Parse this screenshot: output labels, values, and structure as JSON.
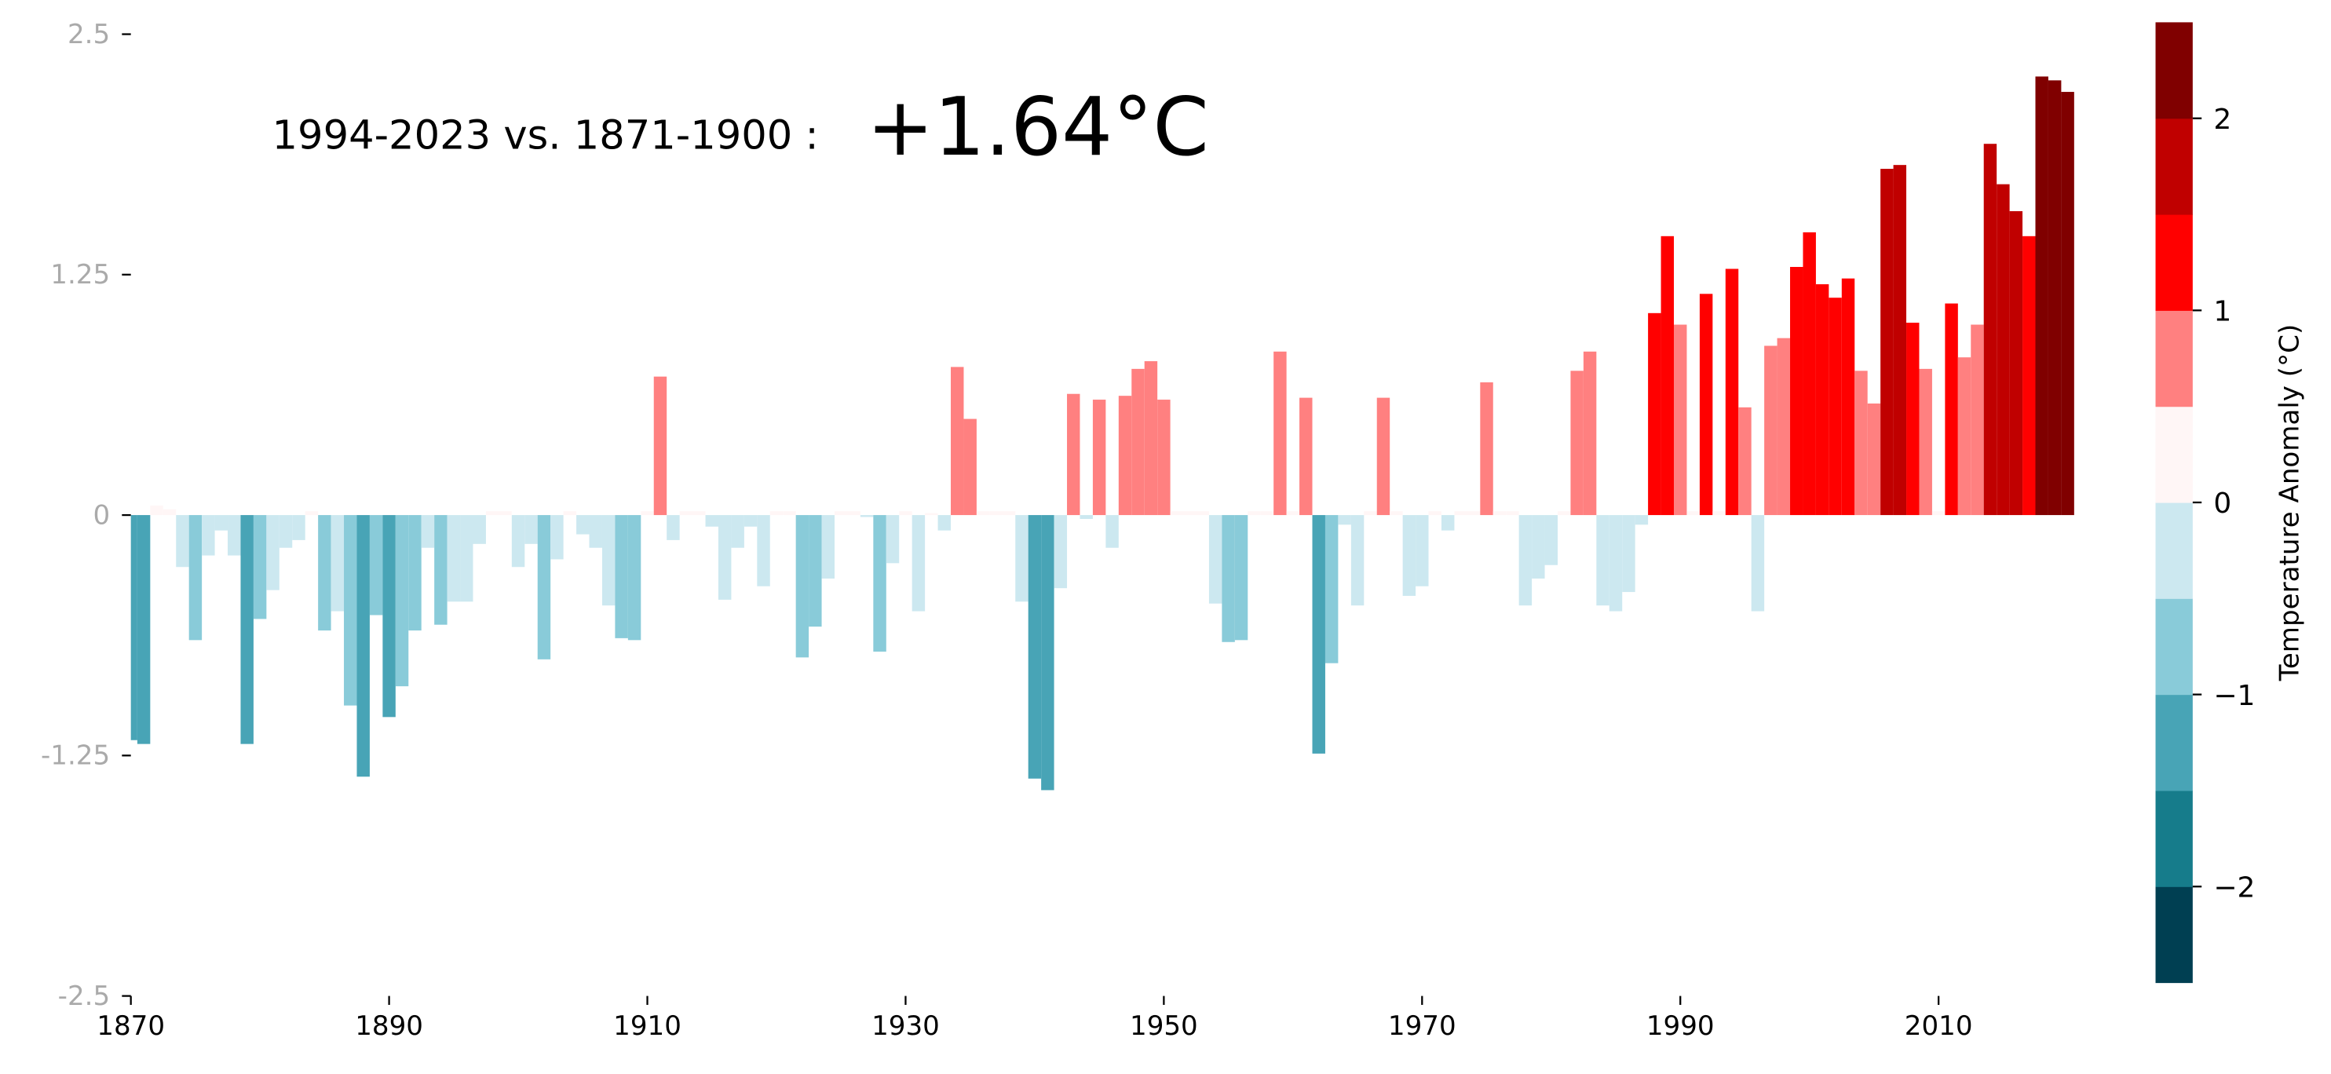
{
  "chart_data": {
    "type": "bar",
    "annotation": "1994-2023 vs. 1871-1900 :",
    "annotation_value": "+1.64°C",
    "x": [
      1870,
      1871,
      1872,
      1873,
      1874,
      1875,
      1876,
      1877,
      1878,
      1879,
      1880,
      1881,
      1882,
      1883,
      1884,
      1885,
      1886,
      1887,
      1888,
      1889,
      1890,
      1891,
      1892,
      1893,
      1894,
      1895,
      1896,
      1897,
      1898,
      1899,
      1900,
      1901,
      1902,
      1903,
      1904,
      1905,
      1906,
      1907,
      1908,
      1909,
      1910,
      1911,
      1912,
      1913,
      1914,
      1915,
      1916,
      1917,
      1918,
      1919,
      1920,
      1921,
      1922,
      1923,
      1924,
      1925,
      1926,
      1927,
      1928,
      1929,
      1930,
      1931,
      1932,
      1933,
      1934,
      1935,
      1936,
      1937,
      1938,
      1939,
      1940,
      1941,
      1942,
      1943,
      1944,
      1945,
      1946,
      1947,
      1948,
      1949,
      1950,
      1951,
      1952,
      1953,
      1954,
      1955,
      1956,
      1957,
      1958,
      1959,
      1960,
      1961,
      1962,
      1963,
      1964,
      1965,
      1966,
      1967,
      1968,
      1969,
      1970,
      1971,
      1972,
      1973,
      1974,
      1975,
      1976,
      1977,
      1978,
      1979,
      1980,
      1981,
      1982,
      1983,
      1984,
      1985,
      1986,
      1987,
      1988,
      1989,
      1990,
      1991,
      1992,
      1993,
      1994,
      1995,
      1996,
      1997,
      1998,
      1999,
      2000,
      2001,
      2002,
      2003,
      2004,
      2005,
      2006,
      2007,
      2008,
      2009,
      2010,
      2011,
      2012,
      2013,
      2014,
      2015,
      2016,
      2017,
      2018,
      2019,
      2020
    ],
    "values": [
      -1.17,
      -1.19,
      0.05,
      0.03,
      -0.27,
      -0.65,
      -0.21,
      -0.08,
      -0.21,
      -1.19,
      -0.54,
      -0.39,
      -0.17,
      -0.13,
      0.02,
      -0.6,
      -0.5,
      -0.99,
      -1.36,
      -0.52,
      -1.05,
      -0.89,
      -0.6,
      -0.17,
      -0.57,
      -0.45,
      -0.45,
      -0.15,
      0.02,
      0.02,
      -0.27,
      -0.15,
      -0.75,
      -0.23,
      0.02,
      -0.1,
      -0.17,
      -0.47,
      -0.64,
      -0.65,
      0.02,
      0.72,
      -0.13,
      0.02,
      0.02,
      -0.06,
      -0.44,
      -0.17,
      -0.06,
      -0.37,
      0.02,
      0.02,
      -0.74,
      -0.58,
      -0.33,
      0.02,
      0.02,
      -0.01,
      -0.71,
      -0.25,
      0.02,
      -0.5,
      0.01,
      -0.08,
      0.77,
      0.5,
      0.02,
      0.02,
      0.02,
      -0.45,
      -1.37,
      -1.43,
      -0.38,
      0.63,
      -0.02,
      0.6,
      -0.17,
      0.62,
      0.76,
      0.8,
      0.6,
      0.02,
      0.02,
      0.02,
      -0.46,
      -0.66,
      -0.65,
      0.02,
      0.02,
      0.85,
      0.02,
      0.61,
      -1.24,
      -0.77,
      -0.05,
      -0.47,
      0.02,
      0.61,
      0.02,
      -0.42,
      -0.37,
      0.02,
      -0.08,
      0.02,
      0.02,
      0.69,
      0.02,
      0.02,
      -0.47,
      -0.33,
      -0.26,
      0.02,
      0.75,
      0.85,
      -0.47,
      -0.5,
      -0.4,
      -0.05,
      1.05,
      1.45,
      0.99,
      0.02,
      1.15,
      0.02,
      1.28,
      0.56,
      -0.5,
      0.88,
      0.92,
      1.29,
      1.47,
      1.2,
      1.13,
      1.23,
      0.75,
      0.58,
      1.8,
      1.82,
      1.0,
      0.76,
      0.02,
      1.1,
      0.82,
      0.99,
      1.93,
      1.72,
      1.58,
      1.45,
      2.28,
      2.26,
      2.2
    ],
    "xlim": [
      1870,
      2021
    ],
    "xticks": [
      1870,
      1890,
      1910,
      1930,
      1950,
      1970,
      1990,
      2010
    ],
    "ylim": [
      -2.5,
      2.5
    ],
    "yticks": [
      -2.5,
      -1.25,
      0,
      1.25,
      2.5
    ],
    "grid": false,
    "colorbar": {
      "label": "Temperature Anomaly (°C)",
      "bounds": [
        -2.5,
        -2,
        -1.5,
        -1,
        -0.5,
        0,
        0.5,
        1,
        1.5,
        2,
        2.5
      ],
      "colors": [
        "#003f52",
        "#167c8b",
        "#48a4b6",
        "#89cbd9",
        "#cce8f0",
        "#fff6f6",
        "#ff8080",
        "#ff0000",
        "#c00000",
        "#800000"
      ],
      "ticks": [
        {
          "value": -2,
          "label": "−2"
        },
        {
          "value": -1,
          "label": "−1"
        },
        0,
        1,
        2
      ]
    }
  }
}
